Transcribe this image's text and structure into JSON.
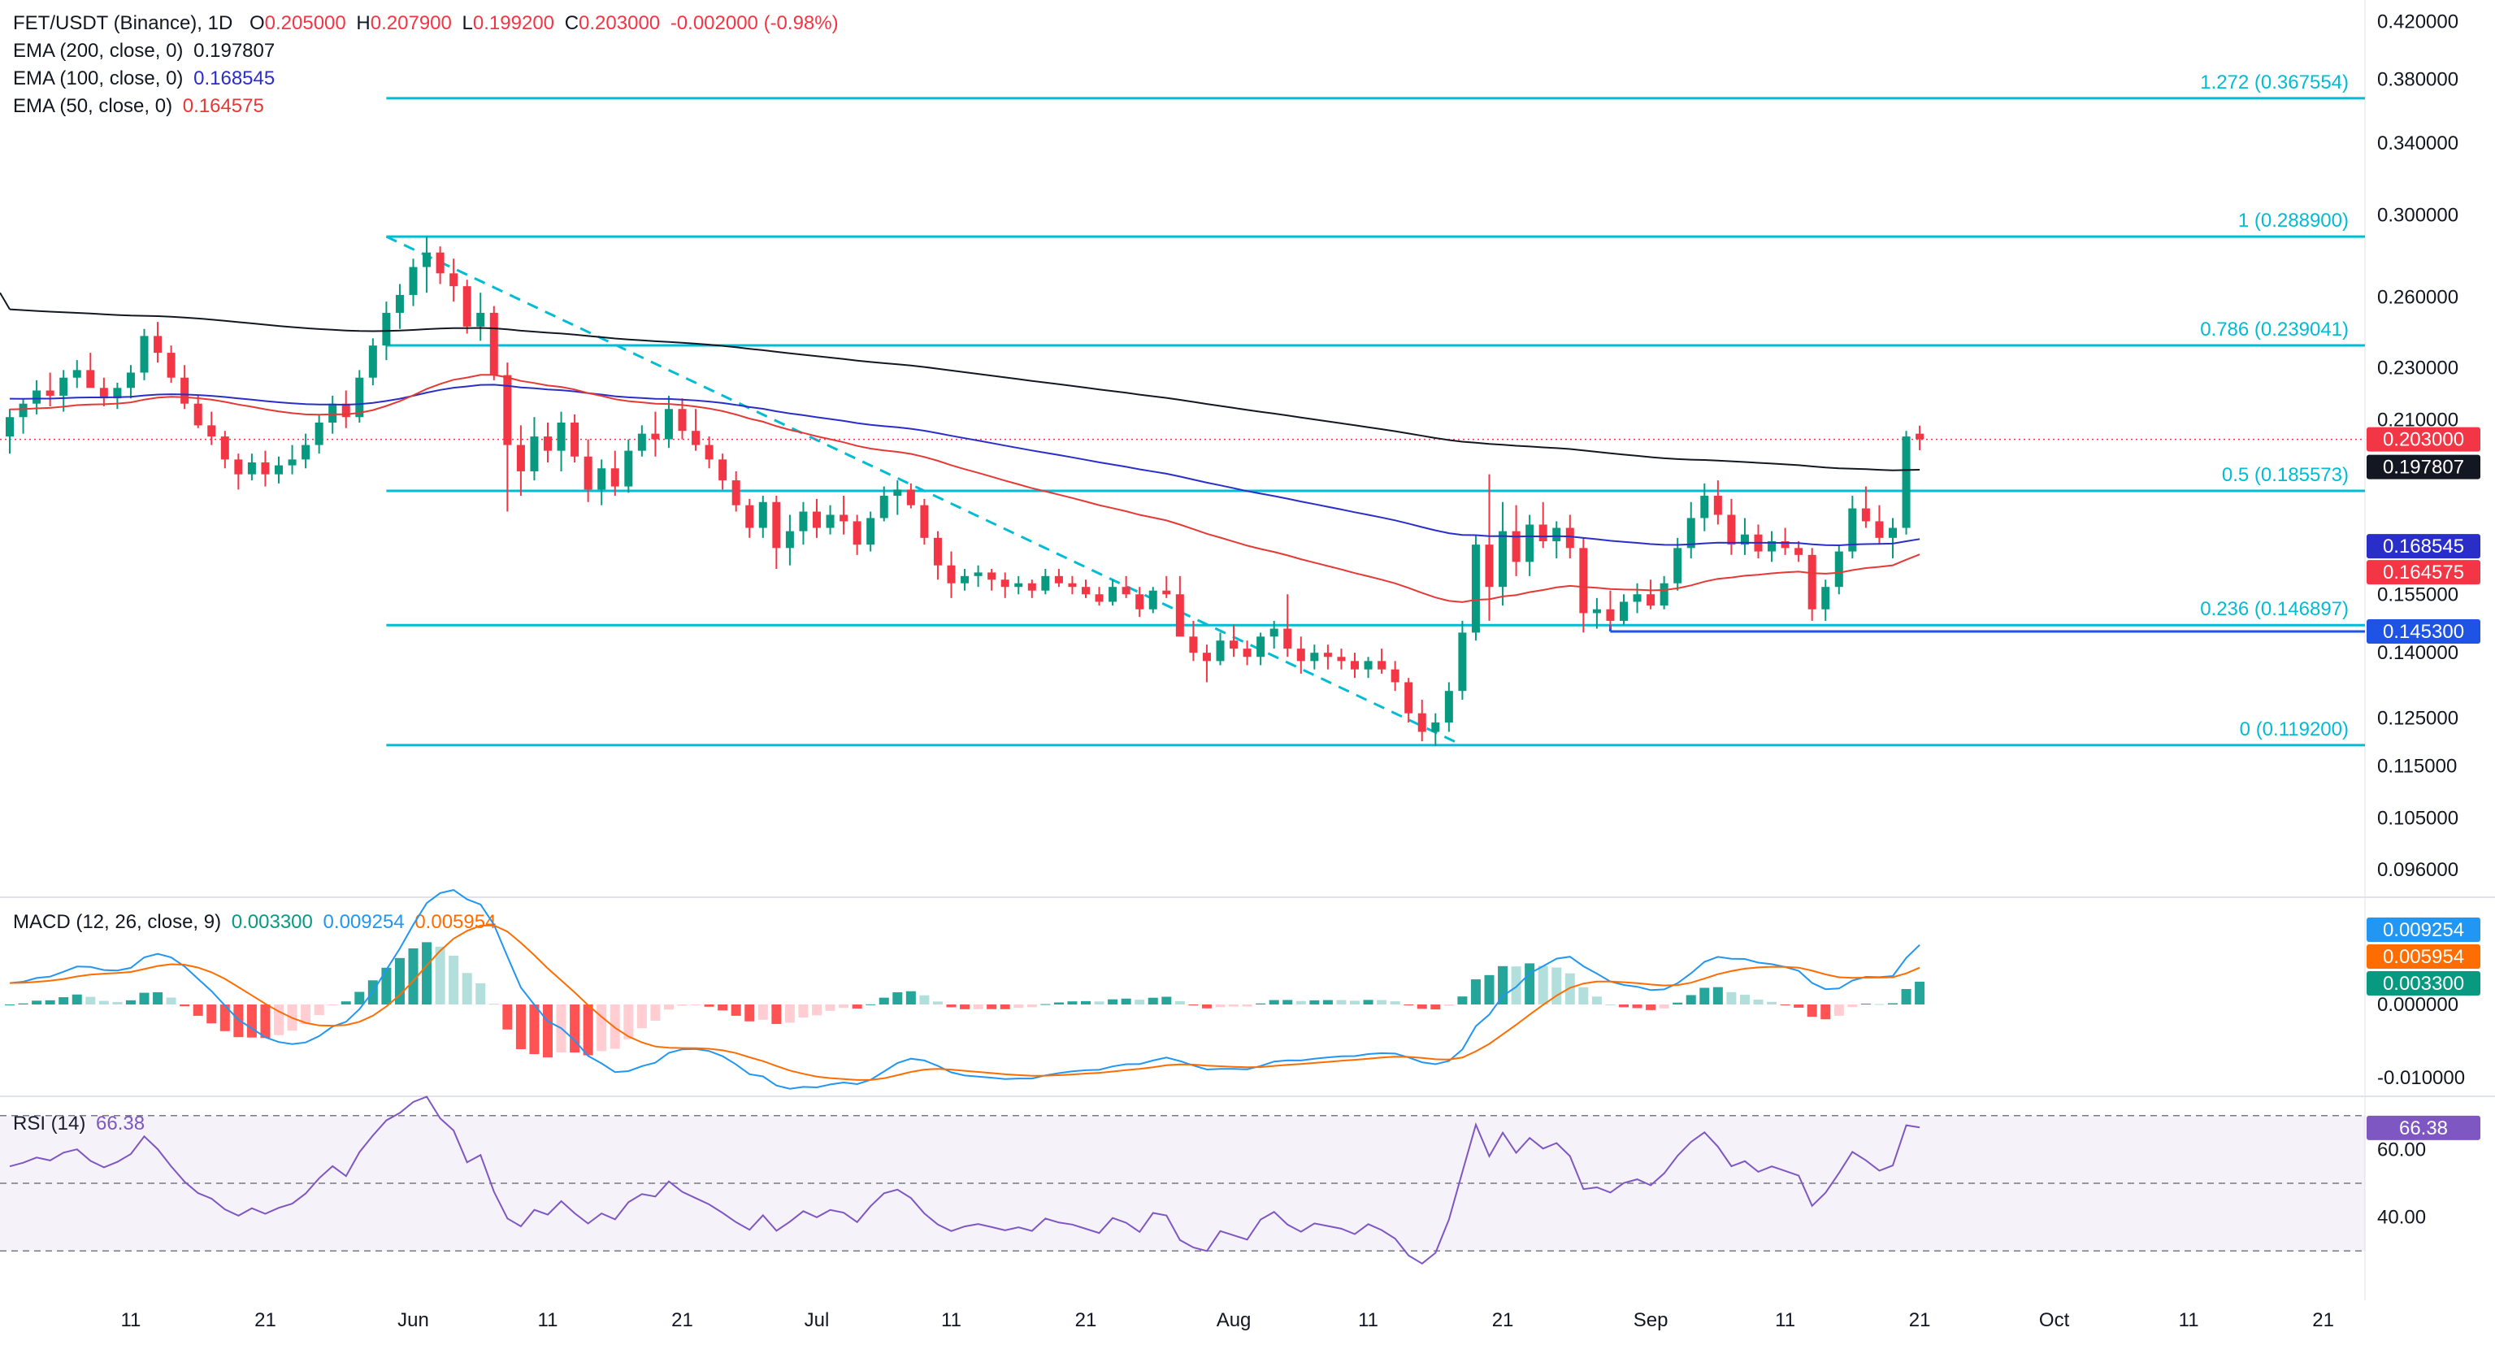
{
  "header": {
    "symbol": "FET/USDT (Binance), 1D",
    "open_label": "O",
    "open": "0.205000",
    "high_label": "H",
    "high": "0.207900",
    "low_label": "L",
    "low": "0.199200",
    "close_label": "C",
    "close": "0.203000",
    "change": "-0.002000 (-0.98%)"
  },
  "ema_legend": [
    {
      "label": "EMA (200, close, 0)",
      "value": "0.197807",
      "color": "#131722"
    },
    {
      "label": "EMA (100, close, 0)",
      "value": "0.168545",
      "color": "#2a2ec8"
    },
    {
      "label": "EMA (50, close, 0)",
      "value": "0.164575",
      "color": "#e53935"
    }
  ],
  "macd_legend": {
    "label": "MACD (12, 26, close, 9)",
    "hist": "0.003300",
    "macd": "0.009254",
    "signal": "0.005954"
  },
  "rsi_legend": {
    "label": "RSI (14)",
    "value": "66.38"
  },
  "colors": {
    "up": "#089981",
    "down": "#f23645",
    "fib": "#00bcd4",
    "ema200": "#131722",
    "ema100": "#2a2ec8",
    "ema50": "#e53935",
    "macd": "#2196f3",
    "signal": "#ff6d00",
    "rsi": "#7e57c2",
    "support": "#1e53e5"
  },
  "price_axis_ticks": [
    "0.420000",
    "0.380000",
    "0.340000",
    "0.300000",
    "0.260000",
    "0.230000",
    "0.210000",
    "0.155000",
    "0.140000",
    "0.125000",
    "0.115000",
    "0.105000",
    "0.096000"
  ],
  "macd_axis_ticks": [
    "0.000000",
    "-0.010000"
  ],
  "rsi_axis_ticks": [
    "60.00",
    "40.00"
  ],
  "x_axis_labels": [
    "11",
    "21",
    "Jun",
    "11",
    "21",
    "Jul",
    "11",
    "21",
    "Aug",
    "11",
    "21",
    "Sep",
    "11",
    "21",
    "Oct",
    "11",
    "21"
  ],
  "price_badges": [
    {
      "text": "0.203000",
      "bg": "#f23645"
    },
    {
      "text": "0.197807",
      "bg": "#131722"
    },
    {
      "text": "0.168545",
      "bg": "#2a2ec8"
    },
    {
      "text": "0.164575",
      "bg": "#f23645"
    },
    {
      "text": "0.145300",
      "bg": "#1e53e5"
    }
  ],
  "macd_badges": [
    {
      "text": "0.009254",
      "bg": "#2196f3"
    },
    {
      "text": "0.005954",
      "bg": "#ff6d00"
    },
    {
      "text": "0.003300",
      "bg": "#089981"
    }
  ],
  "rsi_badge": {
    "text": "66.38",
    "bg": "#7e57c2"
  },
  "chart_data": {
    "type": "candlestick",
    "price_scale": "log",
    "ylim": [
      0.092,
      0.43
    ],
    "dates": [
      "2024-05-02",
      "2024-09-26"
    ],
    "date_axis_range": [
      "2024-05-05",
      "2024-10-27"
    ],
    "fibonacci": [
      {
        "label": "1.272 (0.367554)",
        "value": 0.367554
      },
      {
        "label": "1 (0.288900)",
        "value": 0.2889
      },
      {
        "label": "0.786 (0.239041)",
        "value": 0.239041
      },
      {
        "label": "0.5 (0.185573)",
        "value": 0.185573
      },
      {
        "label": "0.236 (0.146897)",
        "value": 0.146897
      },
      {
        "label": "0 (0.119200)",
        "value": 0.1192
      }
    ],
    "trendline": {
      "start": [
        "2024-05-30",
        0.2889
      ],
      "end": [
        "2024-08-18",
        0.1192
      ]
    },
    "support_line": {
      "start": [
        "2024-08-29",
        0.1453
      ],
      "end": [
        "2024-09-26",
        0.1453
      ],
      "value": 0.1453
    },
    "current_price_line": 0.203,
    "ohlc": [
      [
        0.204,
        0.214,
        0.198,
        0.211
      ],
      [
        0.211,
        0.218,
        0.205,
        0.216
      ],
      [
        0.216,
        0.225,
        0.212,
        0.221
      ],
      [
        0.221,
        0.228,
        0.215,
        0.219
      ],
      [
        0.219,
        0.229,
        0.213,
        0.226
      ],
      [
        0.226,
        0.233,
        0.222,
        0.229
      ],
      [
        0.229,
        0.236,
        0.223,
        0.222
      ],
      [
        0.222,
        0.226,
        0.215,
        0.218
      ],
      [
        0.218,
        0.224,
        0.214,
        0.222
      ],
      [
        0.222,
        0.231,
        0.218,
        0.228
      ],
      [
        0.228,
        0.246,
        0.225,
        0.243
      ],
      [
        0.243,
        0.249,
        0.232,
        0.236
      ],
      [
        0.236,
        0.239,
        0.224,
        0.226
      ],
      [
        0.226,
        0.231,
        0.214,
        0.216
      ],
      [
        0.216,
        0.219,
        0.207,
        0.208
      ],
      [
        0.208,
        0.213,
        0.201,
        0.204
      ],
      [
        0.204,
        0.206,
        0.193,
        0.196
      ],
      [
        0.196,
        0.198,
        0.186,
        0.191
      ],
      [
        0.191,
        0.198,
        0.189,
        0.195
      ],
      [
        0.195,
        0.199,
        0.187,
        0.191
      ],
      [
        0.191,
        0.197,
        0.188,
        0.194
      ],
      [
        0.194,
        0.201,
        0.191,
        0.196
      ],
      [
        0.196,
        0.205,
        0.193,
        0.201
      ],
      [
        0.201,
        0.212,
        0.198,
        0.209
      ],
      [
        0.209,
        0.219,
        0.205,
        0.216
      ],
      [
        0.216,
        0.221,
        0.207,
        0.211
      ],
      [
        0.211,
        0.229,
        0.209,
        0.226
      ],
      [
        0.226,
        0.242,
        0.223,
        0.239
      ],
      [
        0.239,
        0.258,
        0.233,
        0.253
      ],
      [
        0.253,
        0.266,
        0.246,
        0.261
      ],
      [
        0.261,
        0.278,
        0.256,
        0.274
      ],
      [
        0.274,
        0.289,
        0.262,
        0.281
      ],
      [
        0.281,
        0.284,
        0.266,
        0.271
      ],
      [
        0.271,
        0.278,
        0.258,
        0.265
      ],
      [
        0.265,
        0.268,
        0.244,
        0.247
      ],
      [
        0.247,
        0.262,
        0.241,
        0.253
      ],
      [
        0.253,
        0.256,
        0.225,
        0.227
      ],
      [
        0.227,
        0.232,
        0.179,
        0.201
      ],
      [
        0.201,
        0.208,
        0.184,
        0.192
      ],
      [
        0.192,
        0.211,
        0.189,
        0.204
      ],
      [
        0.204,
        0.209,
        0.195,
        0.199
      ],
      [
        0.199,
        0.213,
        0.192,
        0.209
      ],
      [
        0.209,
        0.212,
        0.195,
        0.197
      ],
      [
        0.197,
        0.203,
        0.182,
        0.186
      ],
      [
        0.186,
        0.196,
        0.181,
        0.193
      ],
      [
        0.193,
        0.199,
        0.184,
        0.187
      ],
      [
        0.187,
        0.203,
        0.185,
        0.199
      ],
      [
        0.199,
        0.208,
        0.197,
        0.205
      ],
      [
        0.205,
        0.213,
        0.197,
        0.203
      ],
      [
        0.203,
        0.219,
        0.2,
        0.214
      ],
      [
        0.214,
        0.218,
        0.203,
        0.206
      ],
      [
        0.206,
        0.214,
        0.199,
        0.201
      ],
      [
        0.201,
        0.204,
        0.193,
        0.196
      ],
      [
        0.196,
        0.198,
        0.186,
        0.189
      ],
      [
        0.189,
        0.192,
        0.179,
        0.181
      ],
      [
        0.181,
        0.183,
        0.171,
        0.174
      ],
      [
        0.174,
        0.184,
        0.171,
        0.182
      ],
      [
        0.182,
        0.184,
        0.162,
        0.168
      ],
      [
        0.168,
        0.178,
        0.163,
        0.173
      ],
      [
        0.173,
        0.182,
        0.169,
        0.179
      ],
      [
        0.179,
        0.183,
        0.171,
        0.174
      ],
      [
        0.174,
        0.181,
        0.172,
        0.178
      ],
      [
        0.178,
        0.184,
        0.172,
        0.176
      ],
      [
        0.176,
        0.178,
        0.166,
        0.169
      ],
      [
        0.169,
        0.179,
        0.167,
        0.177
      ],
      [
        0.177,
        0.187,
        0.176,
        0.184
      ],
      [
        0.184,
        0.189,
        0.178,
        0.186
      ],
      [
        0.186,
        0.188,
        0.18,
        0.181
      ],
      [
        0.181,
        0.183,
        0.169,
        0.171
      ],
      [
        0.171,
        0.173,
        0.159,
        0.163
      ],
      [
        0.163,
        0.167,
        0.154,
        0.158
      ],
      [
        0.158,
        0.162,
        0.156,
        0.16
      ],
      [
        0.16,
        0.163,
        0.157,
        0.161
      ],
      [
        0.161,
        0.162,
        0.156,
        0.159
      ],
      [
        0.159,
        0.161,
        0.154,
        0.157
      ],
      [
        0.157,
        0.16,
        0.155,
        0.158
      ],
      [
        0.158,
        0.159,
        0.154,
        0.156
      ],
      [
        0.156,
        0.162,
        0.155,
        0.16
      ],
      [
        0.16,
        0.162,
        0.157,
        0.158
      ],
      [
        0.158,
        0.16,
        0.155,
        0.157
      ],
      [
        0.157,
        0.159,
        0.154,
        0.155
      ],
      [
        0.155,
        0.157,
        0.152,
        0.153
      ],
      [
        0.153,
        0.159,
        0.152,
        0.157
      ],
      [
        0.157,
        0.16,
        0.154,
        0.155
      ],
      [
        0.155,
        0.157,
        0.149,
        0.151
      ],
      [
        0.151,
        0.157,
        0.15,
        0.156
      ],
      [
        0.156,
        0.16,
        0.154,
        0.155
      ],
      [
        0.155,
        0.16,
        0.146,
        0.144
      ],
      [
        0.144,
        0.148,
        0.138,
        0.14
      ],
      [
        0.14,
        0.142,
        0.133,
        0.138
      ],
      [
        0.138,
        0.145,
        0.137,
        0.143
      ],
      [
        0.143,
        0.147,
        0.139,
        0.141
      ],
      [
        0.141,
        0.143,
        0.137,
        0.139
      ],
      [
        0.139,
        0.145,
        0.137,
        0.144
      ],
      [
        0.144,
        0.148,
        0.141,
        0.146
      ],
      [
        0.146,
        0.155,
        0.139,
        0.141
      ],
      [
        0.141,
        0.144,
        0.135,
        0.138
      ],
      [
        0.138,
        0.142,
        0.136,
        0.14
      ],
      [
        0.14,
        0.142,
        0.136,
        0.139
      ],
      [
        0.139,
        0.141,
        0.136,
        0.138
      ],
      [
        0.138,
        0.14,
        0.134,
        0.136
      ],
      [
        0.136,
        0.139,
        0.134,
        0.138
      ],
      [
        0.138,
        0.141,
        0.135,
        0.136
      ],
      [
        0.136,
        0.138,
        0.131,
        0.133
      ],
      [
        0.133,
        0.134,
        0.124,
        0.126
      ],
      [
        0.126,
        0.129,
        0.12,
        0.122
      ],
      [
        0.122,
        0.126,
        0.119,
        0.124
      ],
      [
        0.124,
        0.133,
        0.122,
        0.131
      ],
      [
        0.131,
        0.148,
        0.129,
        0.145
      ],
      [
        0.145,
        0.172,
        0.143,
        0.169
      ],
      [
        0.169,
        0.191,
        0.148,
        0.157
      ],
      [
        0.157,
        0.182,
        0.152,
        0.173
      ],
      [
        0.173,
        0.181,
        0.16,
        0.164
      ],
      [
        0.164,
        0.178,
        0.16,
        0.175
      ],
      [
        0.175,
        0.182,
        0.168,
        0.17
      ],
      [
        0.17,
        0.176,
        0.165,
        0.174
      ],
      [
        0.174,
        0.178,
        0.165,
        0.168
      ],
      [
        0.168,
        0.171,
        0.145,
        0.15
      ],
      [
        0.15,
        0.154,
        0.146,
        0.151
      ],
      [
        0.151,
        0.156,
        0.146,
        0.148
      ],
      [
        0.148,
        0.155,
        0.147,
        0.153
      ],
      [
        0.153,
        0.158,
        0.15,
        0.155
      ],
      [
        0.155,
        0.159,
        0.151,
        0.152
      ],
      [
        0.152,
        0.16,
        0.151,
        0.158
      ],
      [
        0.158,
        0.171,
        0.156,
        0.168
      ],
      [
        0.168,
        0.182,
        0.165,
        0.177
      ],
      [
        0.177,
        0.188,
        0.173,
        0.184
      ],
      [
        0.184,
        0.189,
        0.175,
        0.178
      ],
      [
        0.178,
        0.183,
        0.166,
        0.169
      ],
      [
        0.169,
        0.177,
        0.166,
        0.172
      ],
      [
        0.172,
        0.175,
        0.165,
        0.167
      ],
      [
        0.167,
        0.173,
        0.164,
        0.17
      ],
      [
        0.17,
        0.174,
        0.166,
        0.168
      ],
      [
        0.168,
        0.17,
        0.164,
        0.166
      ],
      [
        0.166,
        0.168,
        0.148,
        0.151
      ],
      [
        0.151,
        0.159,
        0.148,
        0.157
      ],
      [
        0.157,
        0.169,
        0.155,
        0.167
      ],
      [
        0.167,
        0.184,
        0.165,
        0.18
      ],
      [
        0.18,
        0.187,
        0.174,
        0.176
      ],
      [
        0.176,
        0.181,
        0.169,
        0.171
      ],
      [
        0.171,
        0.177,
        0.165,
        0.174
      ],
      [
        0.174,
        0.206,
        0.172,
        0.204
      ],
      [
        0.205,
        0.2079,
        0.1992,
        0.203
      ]
    ],
    "macd": {
      "hist_start": 0.0012,
      "hist_end": 0.0033,
      "macd_last": 0.009254,
      "signal_last": 0.005954
    },
    "rsi": {
      "last": 66.38,
      "levels": [
        70,
        50,
        30
      ]
    }
  }
}
